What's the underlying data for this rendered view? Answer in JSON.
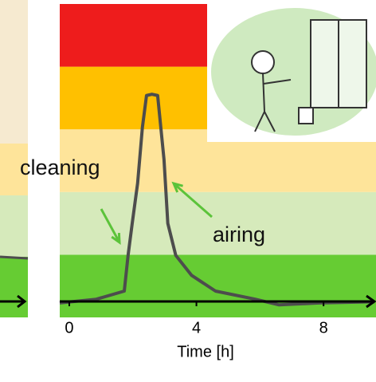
{
  "chart_data": {
    "type": "line",
    "x": [
      -0.3,
      0.85,
      1.73,
      1.85,
      1.98,
      2.15,
      2.3,
      2.43,
      2.6,
      2.78,
      2.98,
      3.1,
      3.35,
      3.85,
      4.6,
      5.85,
      6.6,
      7.85,
      9.6
    ],
    "series": [
      {
        "color": "#4d4d4d",
        "values": [
          0.23,
          0.29,
          0.42,
          0.99,
          1.5,
          2.14,
          3.03,
          3.54,
          3.56,
          3.54,
          2.52,
          1.5,
          0.99,
          0.67,
          0.42,
          0.29,
          0.2,
          0.23,
          0.25
        ]
      }
    ],
    "bands": [
      {
        "from": 0,
        "to": 1,
        "color": "#66cc33"
      },
      {
        "from": 1,
        "to": 2,
        "color": "#d6eabb"
      },
      {
        "from": 2,
        "to": 3,
        "color": "#fee49a"
      },
      {
        "from": 3,
        "to": 4,
        "color": "#ffc000"
      },
      {
        "from": 4,
        "to": 5,
        "color": "#ee1c1c"
      }
    ],
    "xlim": [
      -0.3,
      9.65
    ],
    "ylim": [
      0,
      5
    ],
    "xticks": [
      0,
      4,
      8
    ],
    "xlabel": "Time [h]",
    "annotations": [
      {
        "text": "cleaning"
      },
      {
        "text": "airing"
      }
    ]
  }
}
